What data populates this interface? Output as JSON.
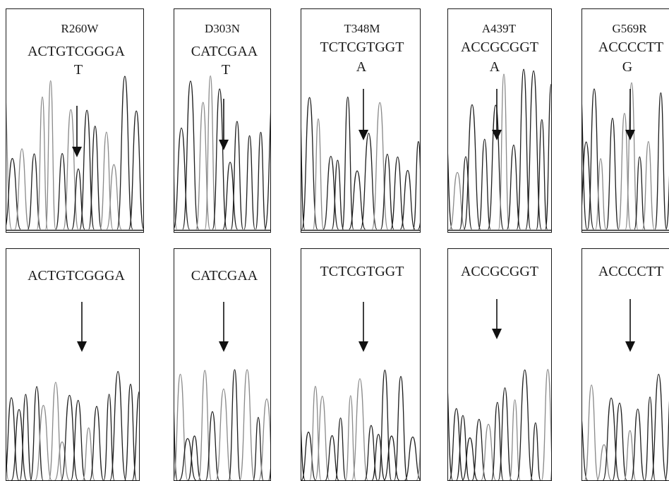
{
  "columns": [
    {
      "mutation": "R260W",
      "mutant_sequence": "ACTGTCGGGA",
      "substituted_base": "T",
      "wildtype_sequence": "ACTGTCGGGA"
    },
    {
      "mutation": "D303N",
      "mutant_sequence": "CATCGAA",
      "substituted_base": "T",
      "wildtype_sequence": "CATCGAA"
    },
    {
      "mutation": "T348M",
      "mutant_sequence": "TCTCGTGGT",
      "substituted_base": "A",
      "wildtype_sequence": "TCTCGTGGT"
    },
    {
      "mutation": "A439T",
      "mutant_sequence": "ACCGCGGT",
      "substituted_base": "A",
      "wildtype_sequence": "ACCGCGGT"
    },
    {
      "mutation": "G569R",
      "mutant_sequence": "ACCCCTT",
      "substituted_base": "G",
      "wildtype_sequence": "ACCCCTT"
    }
  ],
  "colors": {
    "frame": "#1a1a1a",
    "trace_dark": "#1e1e1e",
    "trace_light": "#8a8a8a"
  }
}
